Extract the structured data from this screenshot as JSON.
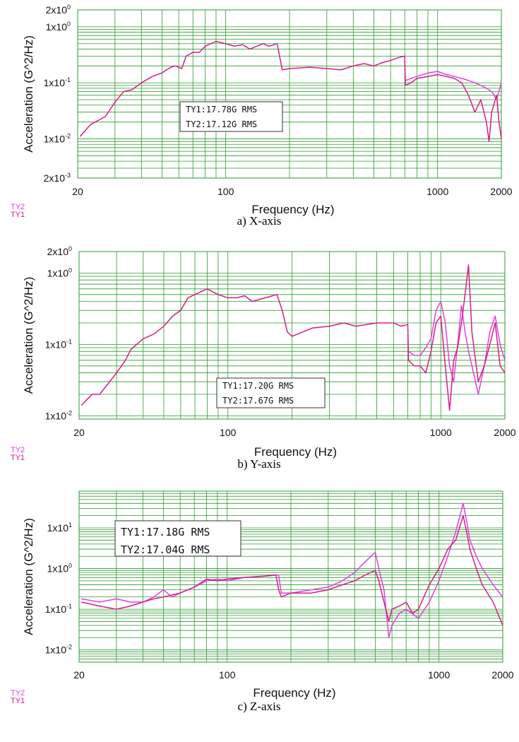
{
  "colors": {
    "TY1": "#d81b8a",
    "TY2": "#e040e6",
    "grid": "#2e9a2e"
  },
  "chart_data": [
    {
      "type": "line",
      "title": "a) X-axis",
      "xlabel": "Frequency (Hz)",
      "ylabel": "Acceleration (G^2/Hz)",
      "xscale": "log",
      "yscale": "log",
      "xlim": [
        20,
        2000
      ],
      "ylim": [
        0.002,
        2
      ],
      "xticks": [
        {
          "v": 20,
          "label": "20"
        },
        {
          "v": 100,
          "label": "100"
        },
        {
          "v": 1000,
          "label": "1000"
        },
        {
          "v": 2000,
          "label": "2000"
        }
      ],
      "yticks": [
        {
          "v": 2,
          "label": "2x10",
          "exp": "0"
        },
        {
          "v": 1,
          "label": "1x10",
          "exp": "0"
        },
        {
          "v": 0.1,
          "label": "1x10",
          "exp": "-1"
        },
        {
          "v": 0.01,
          "label": "1x10",
          "exp": "-2"
        },
        {
          "v": 0.002,
          "label": "2x10",
          "exp": "-3"
        }
      ],
      "legend": [
        "TY2",
        "TY1"
      ],
      "rms_box": [
        "TY1:17.78G RMS",
        "TY2:17.12G RMS"
      ],
      "series": [
        {
          "name": "TY1",
          "x": [
            20.5,
            23,
            27,
            30,
            33,
            36,
            40,
            45,
            50,
            55,
            58,
            62,
            65,
            70,
            75,
            80,
            90,
            100,
            110,
            120,
            130,
            140,
            150,
            160,
            175,
            180,
            185,
            200,
            250,
            300,
            350,
            400,
            450,
            500,
            550,
            600,
            650,
            700,
            705,
            750,
            800,
            900,
            1000,
            1100,
            1200,
            1300,
            1400,
            1500,
            1600,
            1700,
            1750,
            1800,
            1900,
            1950,
            2000
          ],
          "y": [
            0.011,
            0.018,
            0.025,
            0.045,
            0.07,
            0.075,
            0.1,
            0.13,
            0.15,
            0.19,
            0.2,
            0.18,
            0.3,
            0.35,
            0.35,
            0.45,
            0.55,
            0.5,
            0.45,
            0.48,
            0.4,
            0.45,
            0.5,
            0.45,
            0.5,
            0.28,
            0.17,
            0.18,
            0.19,
            0.18,
            0.17,
            0.2,
            0.22,
            0.2,
            0.23,
            0.25,
            0.28,
            0.3,
            0.09,
            0.1,
            0.12,
            0.13,
            0.14,
            0.13,
            0.12,
            0.1,
            0.06,
            0.03,
            0.05,
            0.02,
            0.009,
            0.03,
            0.06,
            0.02,
            0.01
          ]
        },
        {
          "name": "TY2",
          "x": [
            705,
            750,
            800,
            900,
            1000,
            1100,
            1200,
            1300,
            1400,
            1500,
            1600,
            1700,
            1800,
            1900,
            2000
          ],
          "y": [
            0.11,
            0.12,
            0.13,
            0.15,
            0.16,
            0.14,
            0.13,
            0.12,
            0.11,
            0.1,
            0.09,
            0.08,
            0.07,
            0.05,
            0.1
          ]
        }
      ]
    },
    {
      "type": "line",
      "title": "b) Y-axis",
      "xlabel": "Frequency (Hz)",
      "ylabel": "Acceleration (G^2/Hz)",
      "xscale": "log",
      "yscale": "log",
      "xlim": [
        20,
        2000
      ],
      "ylim": [
        0.009,
        2
      ],
      "xticks": [
        {
          "v": 20,
          "label": "20"
        },
        {
          "v": 100,
          "label": "100"
        },
        {
          "v": 1000,
          "label": "1000"
        },
        {
          "v": 2000,
          "label": "2000"
        }
      ],
      "yticks": [
        {
          "v": 2,
          "label": "2x10",
          "exp": "0"
        },
        {
          "v": 1,
          "label": "1x10",
          "exp": "0"
        },
        {
          "v": 0.1,
          "label": "1x10",
          "exp": "-1"
        },
        {
          "v": 0.01,
          "label": "1x10",
          "exp": "-2"
        }
      ],
      "legend": [
        "TY2",
        "TY1"
      ],
      "rms_box": [
        "TY1:17.20G RMS",
        "TY2:17.67G RMS"
      ],
      "series": [
        {
          "name": "TY1",
          "x": [
            20.5,
            23,
            25,
            30,
            33,
            35,
            40,
            45,
            50,
            55,
            60,
            65,
            70,
            80,
            90,
            100,
            110,
            120,
            130,
            150,
            170,
            180,
            190,
            200,
            250,
            300,
            350,
            400,
            500,
            600,
            650,
            700,
            705,
            750,
            800,
            850,
            900,
            950,
            1000,
            1050,
            1100,
            1150,
            1200,
            1250,
            1300,
            1350,
            1400,
            1500,
            1600,
            1700,
            1800,
            1900,
            2000
          ],
          "y": [
            0.014,
            0.02,
            0.02,
            0.04,
            0.06,
            0.085,
            0.12,
            0.14,
            0.18,
            0.25,
            0.3,
            0.45,
            0.5,
            0.6,
            0.5,
            0.45,
            0.45,
            0.48,
            0.4,
            0.45,
            0.5,
            0.3,
            0.15,
            0.13,
            0.17,
            0.18,
            0.2,
            0.18,
            0.2,
            0.2,
            0.18,
            0.19,
            0.06,
            0.05,
            0.05,
            0.04,
            0.08,
            0.2,
            0.25,
            0.05,
            0.012,
            0.06,
            0.09,
            0.2,
            0.5,
            1.3,
            0.15,
            0.03,
            0.05,
            0.1,
            0.2,
            0.05,
            0.04
          ]
        },
        {
          "name": "TY2",
          "x": [
            705,
            750,
            800,
            850,
            900,
            950,
            1000,
            1050,
            1100,
            1150,
            1200,
            1250,
            1300,
            1350,
            1400,
            1500,
            1600,
            1700,
            1800,
            1900,
            2000
          ],
          "y": [
            0.08,
            0.07,
            0.07,
            0.09,
            0.12,
            0.3,
            0.4,
            0.2,
            0.05,
            0.03,
            0.1,
            0.35,
            0.15,
            0.08,
            0.05,
            0.02,
            0.05,
            0.15,
            0.25,
            0.1,
            0.06
          ]
        }
      ]
    },
    {
      "type": "line",
      "title": "c) Z-axis",
      "xlabel": "Frequency (Hz)",
      "ylabel": "Acceleration (G^2/Hz)",
      "xscale": "log",
      "yscale": "log",
      "xlim": [
        20,
        2000
      ],
      "ylim": [
        0.005,
        80
      ],
      "xticks": [
        {
          "v": 20,
          "label": "20"
        },
        {
          "v": 100,
          "label": "100"
        },
        {
          "v": 1000,
          "label": "1000"
        },
        {
          "v": 2000,
          "label": "2000"
        }
      ],
      "yticks": [
        {
          "v": 10,
          "label": "1x10",
          "exp": "1"
        },
        {
          "v": 1,
          "label": "1x10",
          "exp": "0"
        },
        {
          "v": 0.1,
          "label": "1x10",
          "exp": "-1"
        },
        {
          "v": 0.01,
          "label": "1x10",
          "exp": "-2"
        }
      ],
      "legend": [
        "TY2",
        "TY1"
      ],
      "rms_box": [
        "TY1:17.18G RMS",
        "TY2:17.04G RMS"
      ],
      "series": [
        {
          "name": "TY1",
          "x": [
            20.5,
            25,
            30,
            35,
            40,
            45,
            50,
            60,
            70,
            80,
            90,
            100,
            120,
            150,
            170,
            175,
            180,
            200,
            250,
            300,
            350,
            400,
            450,
            500,
            520,
            550,
            580,
            600,
            650,
            700,
            750,
            800,
            900,
            1000,
            1100,
            1200,
            1300,
            1350,
            1400,
            1500,
            1600,
            1800,
            2000
          ],
          "y": [
            0.15,
            0.12,
            0.1,
            0.12,
            0.15,
            0.18,
            0.2,
            0.25,
            0.35,
            0.55,
            0.5,
            0.55,
            0.6,
            0.65,
            0.7,
            0.3,
            0.2,
            0.25,
            0.25,
            0.3,
            0.4,
            0.5,
            0.7,
            0.9,
            0.5,
            0.15,
            0.05,
            0.1,
            0.12,
            0.15,
            0.08,
            0.1,
            0.4,
            1.0,
            3.0,
            5.0,
            20,
            8,
            3,
            1.0,
            0.4,
            0.15,
            0.04
          ]
        },
        {
          "name": "TY2",
          "x": [
            20.5,
            25,
            30,
            35,
            40,
            45,
            50,
            55,
            60,
            70,
            80,
            90,
            100,
            120,
            150,
            175,
            180,
            200,
            250,
            300,
            350,
            400,
            450,
            500,
            520,
            550,
            580,
            600,
            650,
            700,
            800,
            900,
            1000,
            1100,
            1200,
            1300,
            1350,
            1400,
            1500,
            1600,
            1800,
            2000
          ],
          "y": [
            0.18,
            0.15,
            0.18,
            0.15,
            0.15,
            0.2,
            0.3,
            0.2,
            0.25,
            0.35,
            0.5,
            0.55,
            0.5,
            0.6,
            0.65,
            0.7,
            0.25,
            0.25,
            0.3,
            0.35,
            0.5,
            0.8,
            1.5,
            2.5,
            1.0,
            0.3,
            0.02,
            0.04,
            0.08,
            0.1,
            0.06,
            0.15,
            0.5,
            2.0,
            8,
            40,
            15,
            5,
            2.0,
            1.0,
            0.4,
            0.2
          ]
        }
      ]
    }
  ]
}
